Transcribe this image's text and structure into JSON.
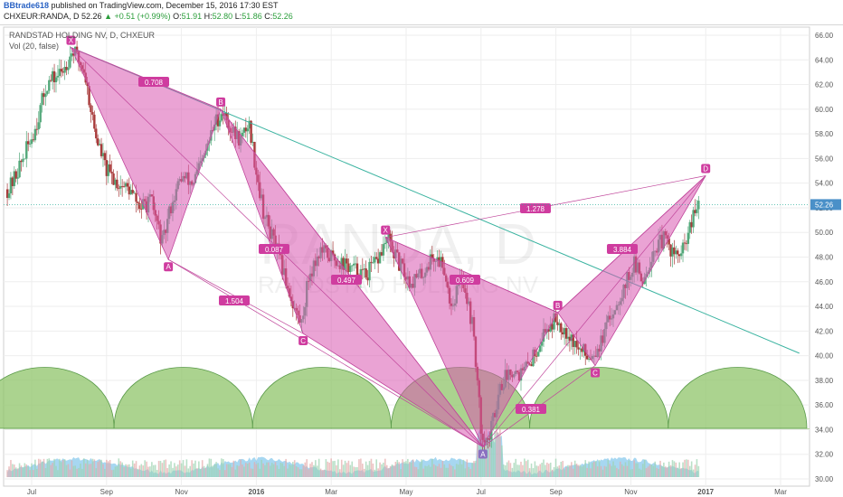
{
  "header": {
    "user": "BBtrade618",
    "published": "published on TradingView.com, December 15, 2016 17:30 EST",
    "symbol": "CHXEUR:RANDA, D",
    "last": "52.26",
    "change": "+0.51 (+0.99%)",
    "o_label": "O:",
    "o": "51.91",
    "h_label": "H:",
    "h": "52.80",
    "l_label": "L:",
    "l": "51.86",
    "c_label": "C:",
    "c": "52.26"
  },
  "legend": {
    "title": "RANDSTAD HOLDING NV, D, CHXEUR",
    "vol": "Vol (20, false)"
  },
  "watermark": {
    "line1": "RANDA, D",
    "line2": "RANDSTAD HOLDING NV"
  },
  "colors": {
    "pattern_fill": "#d957b0",
    "pattern_stroke": "#c0469b",
    "label_bg": "#cf3c9f",
    "candle_up": "#53a87a",
    "candle_down": "#a83a3a",
    "trendline": "#3ab3a0",
    "cycle_fill": "#8fc46a",
    "volume_fill": "#5fb6e6",
    "price_box": "#4a90c8"
  },
  "chart_data": {
    "type": "candlestick",
    "y_axis": {
      "min": 30,
      "max": 66,
      "ticks": [
        "30.00",
        "32.00",
        "34.00",
        "36.00",
        "38.00",
        "40.00",
        "42.00",
        "44.00",
        "46.00",
        "48.00",
        "50.00",
        "52.00",
        "54.00",
        "56.00",
        "58.00",
        "60.00",
        "62.00",
        "64.00",
        "66.00"
      ]
    },
    "x_axis": {
      "ticks": [
        {
          "label": "Jul",
          "t": 0.0
        },
        {
          "label": "Sep",
          "t": 2.0
        },
        {
          "label": "Nov",
          "t": 4.0
        },
        {
          "label": "2016",
          "t": 6.0
        },
        {
          "label": "Mar",
          "t": 8.0
        },
        {
          "label": "May",
          "t": 10.0
        },
        {
          "label": "Jul",
          "t": 12.0
        },
        {
          "label": "Sep",
          "t": 14.0
        },
        {
          "label": "Nov",
          "t": 16.0
        },
        {
          "label": "2017",
          "t": 18.0
        },
        {
          "label": "Mar",
          "t": 20.0
        }
      ]
    },
    "last_price": "52.26",
    "price_path": [
      [
        -0.6,
        53.5
      ],
      [
        -0.3,
        55.5
      ],
      [
        0.1,
        58.5
      ],
      [
        0.4,
        62.0
      ],
      [
        0.8,
        63.0
      ],
      [
        1.1,
        64.8
      ],
      [
        1.4,
        63.2
      ],
      [
        1.7,
        58.0
      ],
      [
        2.0,
        55.0
      ],
      [
        2.3,
        54.0
      ],
      [
        2.6,
        53.5
      ],
      [
        2.9,
        52.0
      ],
      [
        3.2,
        52.5
      ],
      [
        3.5,
        49.0
      ],
      [
        3.7,
        52.0
      ],
      [
        4.0,
        54.5
      ],
      [
        4.3,
        54.0
      ],
      [
        4.6,
        56.0
      ],
      [
        4.9,
        59.0
      ],
      [
        5.1,
        59.8
      ],
      [
        5.4,
        58.0
      ],
      [
        5.6,
        57.5
      ],
      [
        5.8,
        59.0
      ],
      [
        6.0,
        55.0
      ],
      [
        6.2,
        51.5
      ],
      [
        6.5,
        49.0
      ],
      [
        6.8,
        46.0
      ],
      [
        7.0,
        44.0
      ],
      [
        7.2,
        42.5
      ],
      [
        7.4,
        46.5
      ],
      [
        7.7,
        48.5
      ],
      [
        8.0,
        48.0
      ],
      [
        8.3,
        47.5
      ],
      [
        8.6,
        47.0
      ],
      [
        8.9,
        46.5
      ],
      [
        9.2,
        47.5
      ],
      [
        9.5,
        49.5
      ],
      [
        9.8,
        47.5
      ],
      [
        10.1,
        46.0
      ],
      [
        10.4,
        46.5
      ],
      [
        10.7,
        48.0
      ],
      [
        11.0,
        47.5
      ],
      [
        11.2,
        44.0
      ],
      [
        11.5,
        46.5
      ],
      [
        11.8,
        42.0
      ],
      [
        12.0,
        34.0
      ],
      [
        12.2,
        33.0
      ],
      [
        12.5,
        37.5
      ],
      [
        12.8,
        39.0
      ],
      [
        13.1,
        38.5
      ],
      [
        13.4,
        40.0
      ],
      [
        13.7,
        42.0
      ],
      [
        14.0,
        43.0
      ],
      [
        14.3,
        42.0
      ],
      [
        14.6,
        40.5
      ],
      [
        14.9,
        40.0
      ],
      [
        15.2,
        41.0
      ],
      [
        15.5,
        43.5
      ],
      [
        15.8,
        45.5
      ],
      [
        16.1,
        47.5
      ],
      [
        16.3,
        46.0
      ],
      [
        16.6,
        48.5
      ],
      [
        16.9,
        49.5
      ],
      [
        17.2,
        48.0
      ],
      [
        17.4,
        48.5
      ],
      [
        17.6,
        50.5
      ],
      [
        17.8,
        52.26
      ]
    ],
    "harmonic_patterns": [
      {
        "name": "pattern1",
        "points": [
          {
            "label": "X",
            "t": 1.05,
            "y": 65.0
          },
          {
            "label": "A",
            "t": 3.65,
            "y": 47.8
          },
          {
            "label": "B",
            "t": 5.05,
            "y": 60.0
          },
          {
            "label": "C",
            "t": 7.25,
            "y": 41.8
          },
          {
            "label": "D",
            "t": 12.05,
            "y": 32.6
          }
        ],
        "ratios": [
          {
            "label": "0.708",
            "from": "X",
            "to": "B"
          },
          {
            "label": "0.087",
            "from": "A",
            "to": "C"
          },
          {
            "label": "1.504",
            "from": "A",
            "to": "D"
          }
        ]
      },
      {
        "name": "pattern2",
        "points": [
          {
            "label": "X",
            "t": 9.45,
            "y": 49.6
          },
          {
            "label": "A",
            "t": 12.05,
            "y": 32.6
          },
          {
            "label": "B",
            "t": 14.05,
            "y": 43.5
          },
          {
            "label": "C",
            "t": 15.05,
            "y": 39.2
          },
          {
            "label": "D",
            "t": 18.0,
            "y": 54.6
          }
        ],
        "ratios": [
          {
            "label": "0.497",
            "from": "X",
            "to": "B"
          },
          {
            "label": "0.609",
            "from": "X",
            "to": "B2"
          },
          {
            "label": "0.381",
            "from": "A",
            "to": "C"
          },
          {
            "label": "3.884",
            "from": "B",
            "to": "D"
          },
          {
            "label": "1.278",
            "from": "X",
            "to": "D"
          }
        ]
      }
    ],
    "trendline": [
      [
        1.05,
        65.0
      ],
      [
        20.5,
        40.2
      ]
    ],
    "cycles": {
      "start": -1.5,
      "period": 3.7,
      "count": 6
    }
  }
}
